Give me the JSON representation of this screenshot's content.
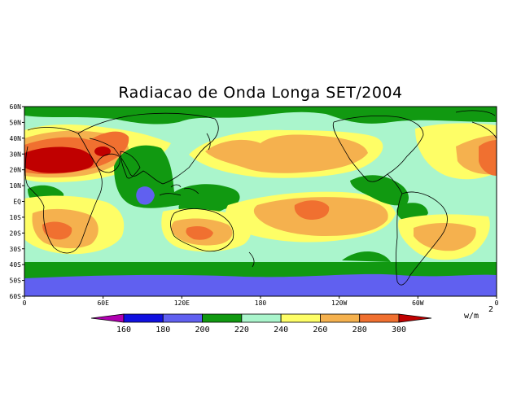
{
  "title": "Radiacao de Onda Longa SET/2004",
  "lat_labels": [
    "60N",
    "50N",
    "40N",
    "30N",
    "20N",
    "10N",
    "EQ",
    "10S",
    "20S",
    "30S",
    "40S",
    "50S",
    "60S"
  ],
  "lon_labels": [
    "0",
    "60E",
    "120E",
    "180",
    "120W",
    "60W",
    "0"
  ],
  "colorbar": {
    "ticks": [
      "160",
      "180",
      "200",
      "220",
      "240",
      "260",
      "280",
      "300"
    ],
    "colors": [
      "#b000b0",
      "#1010e0",
      "#6060f0",
      "#119911",
      "#aaf5cc",
      "#fefe66",
      "#f5b14e",
      "#f07030",
      "#c00000"
    ],
    "unit": "w/m",
    "unit_exp": "2"
  },
  "map_colors": {
    "c200": "#6060f0",
    "c220": "#119911",
    "c240": "#aaf5cc",
    "c260": "#fefe66",
    "c280": "#f5b14e",
    "c300": "#f07030",
    "c320": "#c00000",
    "coast": "#000000"
  }
}
